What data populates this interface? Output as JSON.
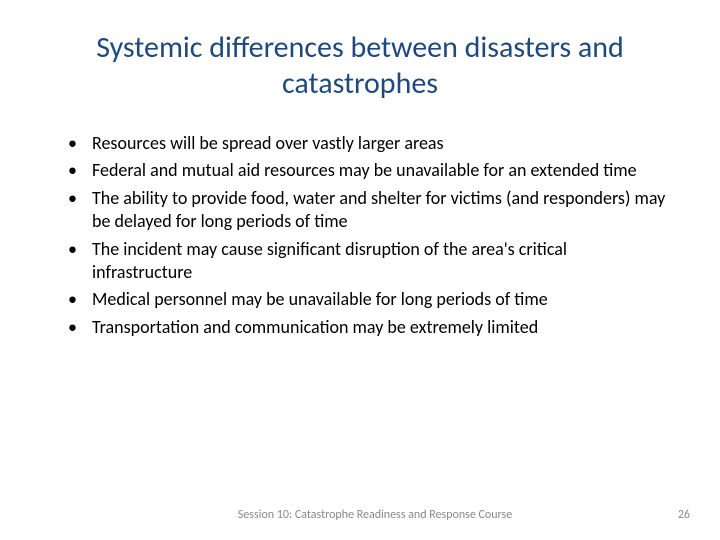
{
  "title": "Systemic differences between disasters and catastrophes",
  "title_color": "#1f497d",
  "title_fontsize": 30,
  "body_color": "#000000",
  "body_fontsize": 18,
  "bullets": [
    "Resources will be spread over vastly larger areas",
    "Federal and mutual aid resources may be unavailable for an extended time",
    "The ability to provide food, water and shelter for victims (and responders) may be delayed for long periods of time",
    "The incident may cause significant disruption of the area's critical infrastructure",
    "Medical personnel may be unavailable for long periods of time",
    "Transportation and communication may be extremely limited"
  ],
  "footer": {
    "text": "Session 10: Catastrophe Readiness and Response Course",
    "page_number": "26",
    "color": "#898989",
    "fontsize": 12
  },
  "background_color": "#ffffff"
}
